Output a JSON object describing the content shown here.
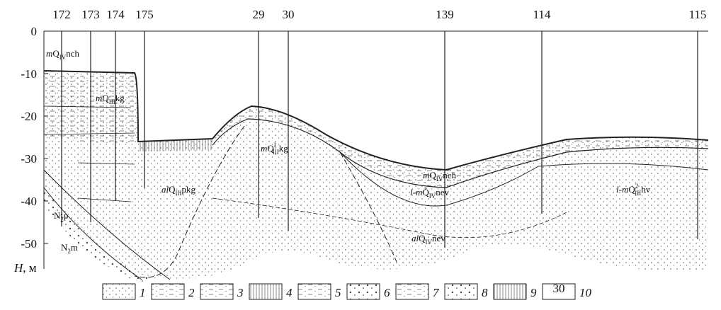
{
  "axis": {
    "label_symbol": "H",
    "label_unit": ", м",
    "ticks": [
      0,
      -10,
      -20,
      -30,
      -40,
      -50
    ]
  },
  "boreholes": [
    {
      "label": "172",
      "bottom": -46
    },
    {
      "label": "173",
      "bottom": -45
    },
    {
      "label": "174",
      "bottom": -40
    },
    {
      "label": "175",
      "bottom": -37
    },
    {
      "label": "29",
      "bottom": -44
    },
    {
      "label": "30",
      "bottom": -47
    },
    {
      "label": "139",
      "bottom": -51
    },
    {
      "label": "114",
      "bottom": -43
    },
    {
      "label": "115",
      "bottom": -49
    }
  ],
  "layer_labels": [
    {
      "prefix": "m",
      "base": "Q",
      "sub": "IV",
      "suffix": "nch"
    },
    {
      "prefix": "m",
      "base": "Q",
      "sub": "III",
      "suffix": "kg"
    },
    {
      "prefix": "m",
      "base": "Q",
      "sup": "I",
      "sub": "III",
      "suffix": "kg"
    },
    {
      "prefix": "al",
      "base": "Q",
      "sub": "III",
      "suffix": "pkg"
    },
    {
      "prefix": "m",
      "base": "Q",
      "sub": "IV",
      "suffix": "nch"
    },
    {
      "prefix": "l-m",
      "base": "Q̃",
      "sub": "IV",
      "suffix": "nev"
    },
    {
      "prefix": "l-m",
      "base": "Q",
      "sup": "2",
      "sub": "III",
      "suffix": "hv"
    },
    {
      "prefix": "al",
      "base": "Q",
      "sub": "IV",
      "suffix": "nev"
    },
    {
      "base": "N",
      "sub": "2",
      "suffix": "p"
    },
    {
      "base": "N",
      "sub": "2",
      "suffix": "m"
    }
  ],
  "legend": {
    "items": [
      "1",
      "2",
      "3",
      "4",
      "5",
      "6",
      "7",
      "8",
      "9",
      "10"
    ],
    "sample_label": "30"
  }
}
